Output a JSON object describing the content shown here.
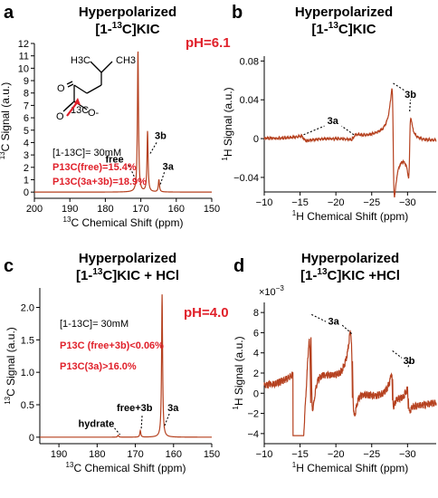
{
  "colors": {
    "trace": "#b5401e",
    "highlight": "#e0202a",
    "axis": "#000000",
    "dash": "#000000"
  },
  "chart_data": [
    {
      "panel": "a",
      "type": "line",
      "title_line1": "Hyperpolarized",
      "title_line2": "[1-",
      "title_sup": "13",
      "title_line2_end": "C]KIC",
      "xlabel_pre": "",
      "xlabel_sup": "13",
      "xlabel_main": "C Chemical Shift (ppm)",
      "ylabel_sup": "13",
      "ylabel_main": "C Signal (a.u.)",
      "xlim": [
        200,
        150
      ],
      "ylim": [
        -0.5,
        12
      ],
      "xticks": [
        200,
        190,
        180,
        170,
        160,
        150
      ],
      "yticks": [
        0,
        1,
        2,
        3,
        4,
        5,
        6,
        7,
        8,
        9,
        10,
        11,
        12
      ],
      "ph": "pH=6.1",
      "peaks": [
        {
          "label": "free",
          "x": 170.8,
          "y": 11.5
        },
        {
          "label": "3b",
          "x": 168.1,
          "y": 4.9
        },
        {
          "label": "3a",
          "x": 164.9,
          "y": 1.0
        }
      ],
      "conc": "[1-13C]= 30mM",
      "pol1_label": "P13C(free)",
      "pol1_value": "=15.4%",
      "pol2_label": "P13C(3a+3b)",
      "pol2_value": "=18.9%",
      "mol_labels": [
        "H3C",
        "CH3",
        "O",
        "O",
        "13C",
        "O-"
      ]
    },
    {
      "panel": "b",
      "type": "line",
      "title_line1": "Hyperpolarized",
      "title_line2": "[1-",
      "title_sup": "13",
      "title_line2_end": "C]KIC",
      "xlabel_sup": "1",
      "xlabel_main": "H Chemical Shift (ppm)",
      "ylabel_sup": "1",
      "ylabel_main": "H Signal (a.u.)",
      "xlim": [
        -10,
        -34
      ],
      "ylim": [
        -0.055,
        0.085
      ],
      "xticks": [
        -10,
        -15,
        -20,
        -25,
        -30
      ],
      "yticks": [
        -0.04,
        0,
        0.04,
        0.08
      ],
      "ytick_labels": [
        "-0.04",
        "0",
        "0.04",
        "0.08"
      ],
      "peaks": [
        {
          "label": "3a",
          "x": -15.5,
          "y": 0.004
        },
        {
          "label": "3a",
          "x": -22.5,
          "y": 0.004
        },
        {
          "label": "3b",
          "x": -28.0,
          "y": 0.059
        },
        {
          "label": "3b",
          "x": -30.3,
          "y": 0.028
        }
      ]
    },
    {
      "panel": "c",
      "type": "line",
      "title_line1": "Hyperpolarized",
      "title_line2": "[1-",
      "title_sup": "13",
      "title_line2_end": "C]KIC + HCl",
      "xlabel_sup": "13",
      "xlabel_main": "C Chemical Shift (ppm)",
      "ylabel_sup": "13",
      "ylabel_main": "C Signal (a.u.)",
      "xlim": [
        195,
        150
      ],
      "ylim": [
        -0.1,
        2.3
      ],
      "xticks": [
        190,
        180,
        170,
        160,
        150
      ],
      "yticks": [
        0,
        0.5,
        1.0,
        1.5,
        2.0
      ],
      "ytick_labels": [
        "0",
        "0.5",
        "1.0",
        "1.5",
        "2.0"
      ],
      "ph": "pH=4.0",
      "peaks": [
        {
          "label": "hydrate",
          "x": 174.5,
          "y": 0.03
        },
        {
          "label": "free+3b",
          "x": 168.7,
          "y": 0.1
        },
        {
          "label": "3a",
          "x": 163.0,
          "y": 2.2
        }
      ],
      "conc": "[1-13C]= 30mM",
      "pol1_label": "P13C (free+3b)",
      "pol1_value": "<0.06%",
      "pol2_label": "P13C(3a)",
      "pol2_value": ">16.0%"
    },
    {
      "panel": "d",
      "type": "line",
      "title_line1": "Hyperpolarized",
      "title_line2": "[1-",
      "title_sup": "13",
      "title_line2_end": "C]KIC +HCl",
      "xlabel_sup": "1",
      "xlabel_main": "H Chemical Shift (ppm)",
      "ylabel_sup": "1",
      "ylabel_main": "H Signal (a.u.)",
      "scale_note": "×10",
      "scale_exp": "−3",
      "xlim": [
        -10,
        -34
      ],
      "ylim": [
        -5,
        9
      ],
      "xticks": [
        -10,
        -15,
        -20,
        -25,
        -30
      ],
      "yticks": [
        -4,
        -2,
        0,
        2,
        4,
        6,
        8
      ],
      "peaks": [
        {
          "label": "3a",
          "x": -16.5,
          "y": 8.0
        },
        {
          "label": "3a",
          "x": -22.3,
          "y": 6.0
        },
        {
          "label": "3b",
          "x": -27.9,
          "y": 4.3
        },
        {
          "label": "3b",
          "x": -30.1,
          "y": 2.7
        }
      ]
    }
  ]
}
